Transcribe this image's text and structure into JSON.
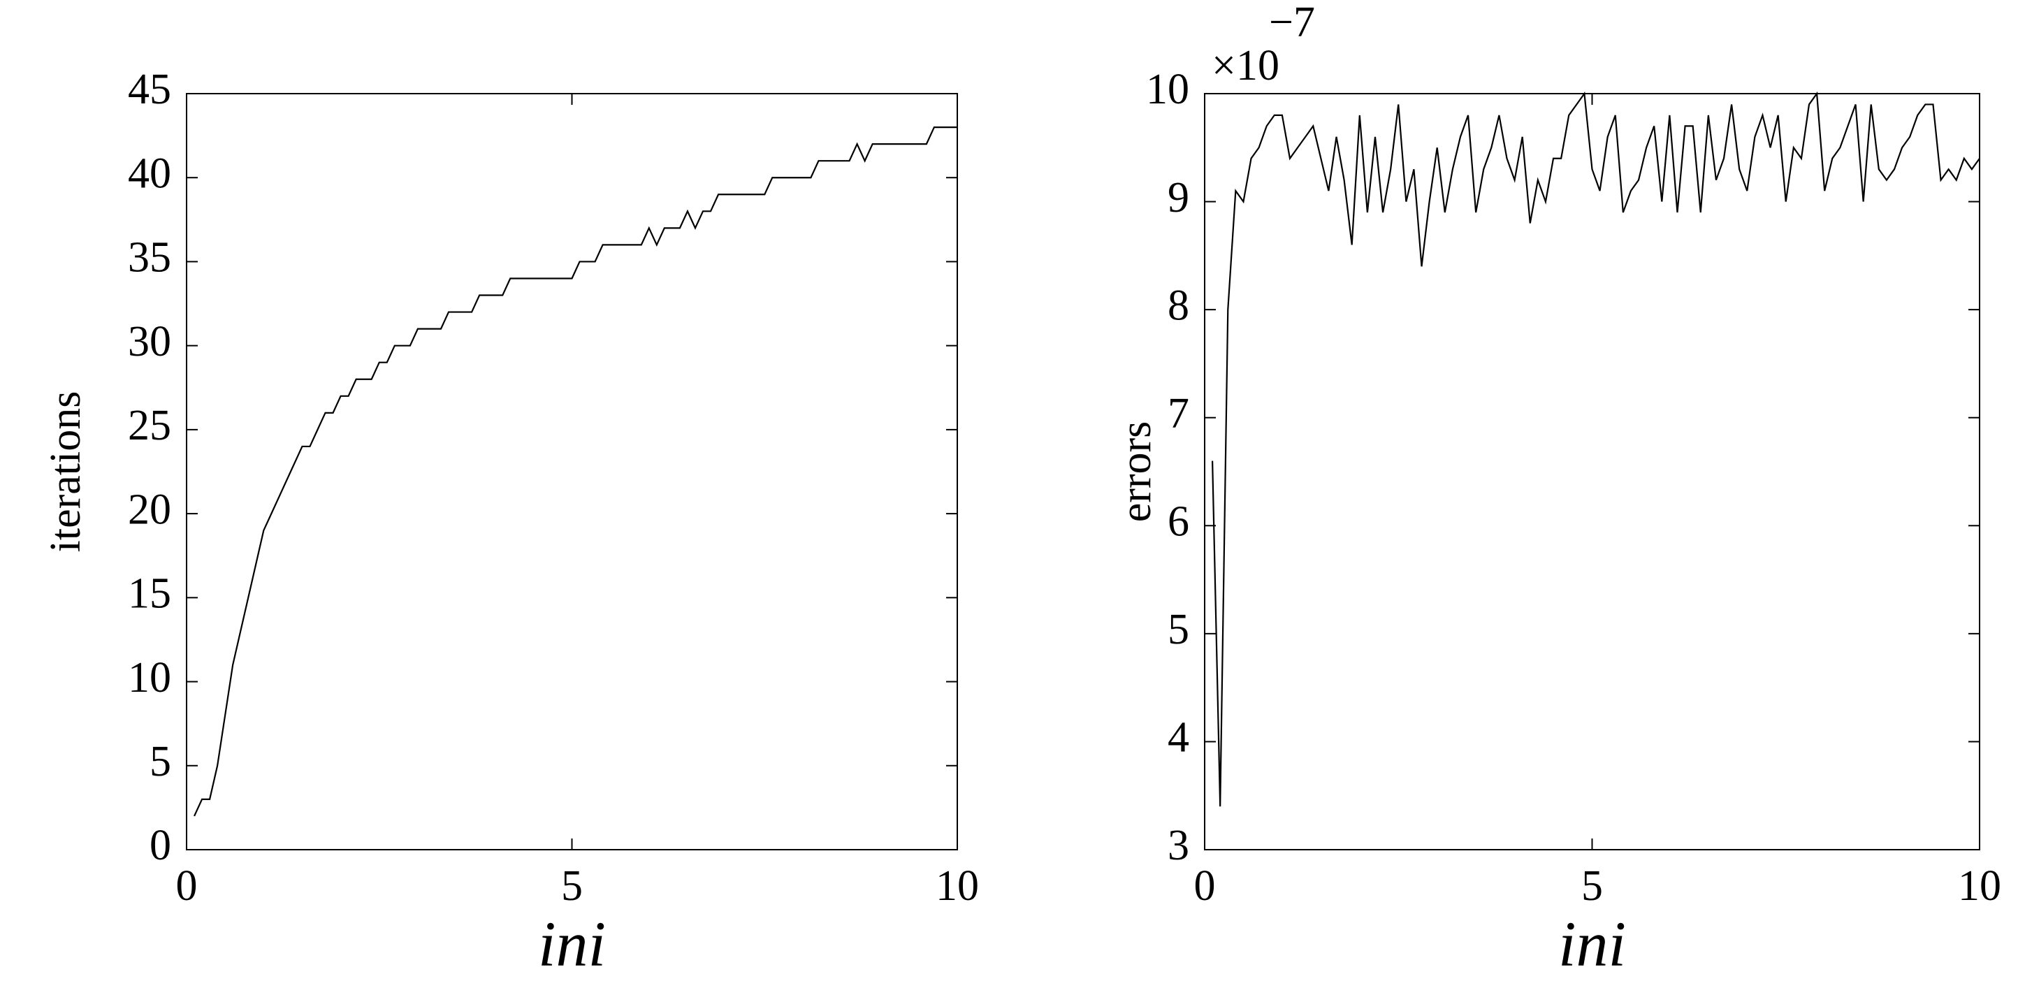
{
  "chart_data": [
    {
      "type": "line",
      "xlabel": "ini",
      "ylabel": "iterations",
      "color": "#000000",
      "xlim": [
        0,
        10
      ],
      "ylim": [
        0,
        45
      ],
      "xticks": [
        0,
        5,
        10
      ],
      "yticks": [
        0,
        5,
        10,
        15,
        20,
        25,
        30,
        35,
        40,
        45
      ],
      "x": [
        0.1,
        0.2,
        0.3,
        0.4,
        0.5,
        0.6,
        0.7,
        0.8,
        0.9,
        1.0,
        1.1,
        1.2,
        1.3,
        1.4,
        1.5,
        1.6,
        1.7,
        1.8,
        1.9,
        2.0,
        2.1,
        2.2,
        2.3,
        2.4,
        2.5,
        2.6,
        2.7,
        2.8,
        2.9,
        3.0,
        3.1,
        3.2,
        3.3,
        3.4,
        3.5,
        3.6,
        3.7,
        3.8,
        3.9,
        4.0,
        4.1,
        4.2,
        4.3,
        4.4,
        4.5,
        4.6,
        4.7,
        4.8,
        4.9,
        5.0,
        5.1,
        5.2,
        5.3,
        5.4,
        5.5,
        5.6,
        5.7,
        5.8,
        5.9,
        6.0,
        6.1,
        6.2,
        6.3,
        6.4,
        6.5,
        6.6,
        6.7,
        6.8,
        6.9,
        7.0,
        7.1,
        7.2,
        7.3,
        7.4,
        7.5,
        7.6,
        7.7,
        7.8,
        7.9,
        8.0,
        8.1,
        8.2,
        8.3,
        8.4,
        8.5,
        8.6,
        8.7,
        8.8,
        8.9,
        9.0,
        9.1,
        9.2,
        9.3,
        9.4,
        9.5,
        9.6,
        9.7,
        9.8,
        9.9,
        10.0
      ],
      "values": [
        2,
        3,
        3,
        5,
        8,
        11,
        13,
        15,
        17,
        19,
        20,
        21,
        22,
        23,
        24,
        24,
        25,
        26,
        26,
        27,
        27,
        28,
        28,
        28,
        29,
        29,
        30,
        30,
        30,
        31,
        31,
        31,
        31,
        32,
        32,
        32,
        32,
        33,
        33,
        33,
        33,
        34,
        34,
        34,
        34,
        34,
        34,
        34,
        34,
        34,
        35,
        35,
        35,
        36,
        36,
        36,
        36,
        36,
        36,
        37,
        36,
        37,
        37,
        37,
        38,
        37,
        38,
        38,
        39,
        39,
        39,
        39,
        39,
        39,
        39,
        40,
        40,
        40,
        40,
        40,
        40,
        41,
        41,
        41,
        41,
        41,
        42,
        41,
        42,
        42,
        42,
        42,
        42,
        42,
        42,
        42,
        43,
        43,
        43,
        43
      ]
    },
    {
      "type": "line",
      "xlabel": "ini",
      "ylabel": "errors",
      "multiplier": "×10",
      "exponent": "−7",
      "color": "#000000",
      "xlim": [
        0,
        10
      ],
      "ylim": [
        3,
        10
      ],
      "xticks": [
        0,
        5,
        10
      ],
      "yticks": [
        3,
        4,
        5,
        6,
        7,
        8,
        9,
        10
      ],
      "x": [
        0.1,
        0.2,
        0.3,
        0.4,
        0.5,
        0.6,
        0.7,
        0.8,
        0.9,
        1.0,
        1.1,
        1.2,
        1.3,
        1.4,
        1.5,
        1.6,
        1.7,
        1.8,
        1.9,
        2.0,
        2.1,
        2.2,
        2.3,
        2.4,
        2.5,
        2.6,
        2.7,
        2.8,
        2.9,
        3.0,
        3.1,
        3.2,
        3.3,
        3.4,
        3.5,
        3.6,
        3.7,
        3.8,
        3.9,
        4.0,
        4.1,
        4.2,
        4.3,
        4.4,
        4.5,
        4.6,
        4.7,
        4.8,
        4.9,
        5.0,
        5.1,
        5.2,
        5.3,
        5.4,
        5.5,
        5.6,
        5.7,
        5.8,
        5.9,
        6.0,
        6.1,
        6.2,
        6.3,
        6.4,
        6.5,
        6.6,
        6.7,
        6.8,
        6.9,
        7.0,
        7.1,
        7.2,
        7.3,
        7.4,
        7.5,
        7.6,
        7.7,
        7.8,
        7.9,
        8.0,
        8.1,
        8.2,
        8.3,
        8.4,
        8.5,
        8.6,
        8.7,
        8.8,
        8.9,
        9.0,
        9.1,
        9.2,
        9.3,
        9.4,
        9.5,
        9.6,
        9.7,
        9.8,
        9.9,
        10.0
      ],
      "values": [
        6.6,
        3.4,
        8.0,
        9.1,
        9.0,
        9.4,
        9.5,
        9.7,
        9.8,
        9.8,
        9.4,
        9.5,
        9.6,
        9.7,
        9.4,
        9.1,
        9.6,
        9.2,
        8.6,
        9.8,
        8.9,
        9.6,
        8.9,
        9.3,
        9.9,
        9.0,
        9.3,
        8.4,
        9.0,
        9.5,
        8.9,
        9.3,
        9.6,
        9.8,
        8.9,
        9.3,
        9.5,
        9.8,
        9.4,
        9.2,
        9.6,
        8.8,
        9.2,
        9.0,
        9.4,
        9.4,
        9.8,
        9.9,
        10.0,
        9.3,
        9.1,
        9.6,
        9.8,
        8.9,
        9.1,
        9.2,
        9.5,
        9.7,
        9.0,
        9.8,
        8.9,
        9.7,
        9.7,
        8.9,
        9.8,
        9.2,
        9.4,
        9.9,
        9.3,
        9.1,
        9.6,
        9.8,
        9.5,
        9.8,
        9.0,
        9.5,
        9.4,
        9.9,
        10.0,
        9.1,
        9.4,
        9.5,
        9.7,
        9.9,
        9.0,
        9.9,
        9.3,
        9.2,
        9.3,
        9.5,
        9.6,
        9.8,
        9.9,
        9.9,
        9.2,
        9.3,
        9.2,
        9.4,
        9.3,
        9.4
      ]
    }
  ]
}
